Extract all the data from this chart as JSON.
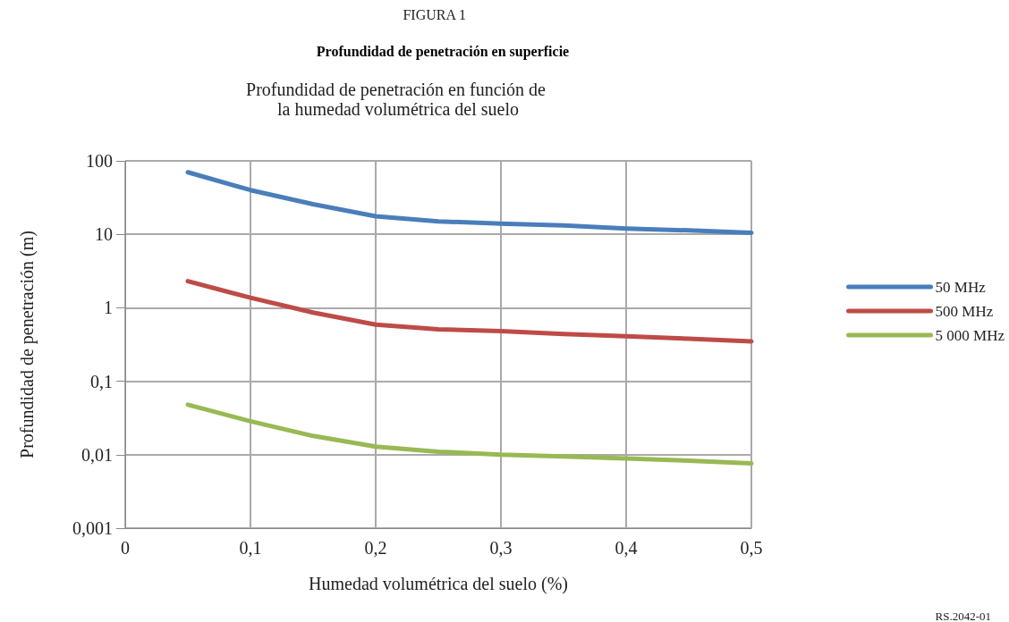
{
  "chart_data": {
    "type": "line",
    "title": "Profundidad de penetración en superficie",
    "subtitle": "Profundidad de penetración en función de la humedad volumétrica del suelo",
    "annotations": [
      "FIGURA 1",
      "RS.2042-01"
    ],
    "xlabel": "Humedad volumétrica del suelo (%)",
    "ylabel": "Profundidad de penetración (m)",
    "x": [
      0.05,
      0.1,
      0.15,
      0.2,
      0.25,
      0.3,
      0.35,
      0.4,
      0.45,
      0.5
    ],
    "series": [
      {
        "name": "50 MHz",
        "color": "#4a7ebb",
        "values": [
          70,
          40,
          25.7,
          17.6,
          15,
          14,
          13.2,
          12,
          11.3,
          10.5
        ]
      },
      {
        "name": "500 MHz",
        "color": "#be4b48",
        "values": [
          2.3,
          1.37,
          0.86,
          0.59,
          0.51,
          0.48,
          0.44,
          0.41,
          0.38,
          0.35
        ]
      },
      {
        "name": "5 000 MHz",
        "color": "#98b954",
        "values": [
          0.048,
          0.0285,
          0.018,
          0.0129,
          0.011,
          0.01,
          0.0095,
          0.0089,
          0.0083,
          0.0076
        ]
      }
    ],
    "xlim": [
      0,
      0.5
    ],
    "xticks": [
      0,
      {
        "value": 0.1,
        "label": "0,1"
      },
      {
        "value": 0.2,
        "label": "0,2"
      },
      {
        "value": 0.3,
        "label": "0,3"
      },
      {
        "value": 0.4,
        "label": "0,4"
      },
      {
        "value": 0.5,
        "label": "0,5"
      }
    ],
    "ylim": [
      0.001,
      100
    ],
    "yticks": [
      {
        "value": 0.001,
        "label": "0,001"
      },
      {
        "value": 0.01,
        "label": "0,01"
      },
      {
        "value": 0.1,
        "label": "0,1"
      },
      1,
      10,
      100
    ],
    "log": "y",
    "grid": true,
    "legend": "right",
    "marker": "none",
    "line_style": "solid"
  }
}
